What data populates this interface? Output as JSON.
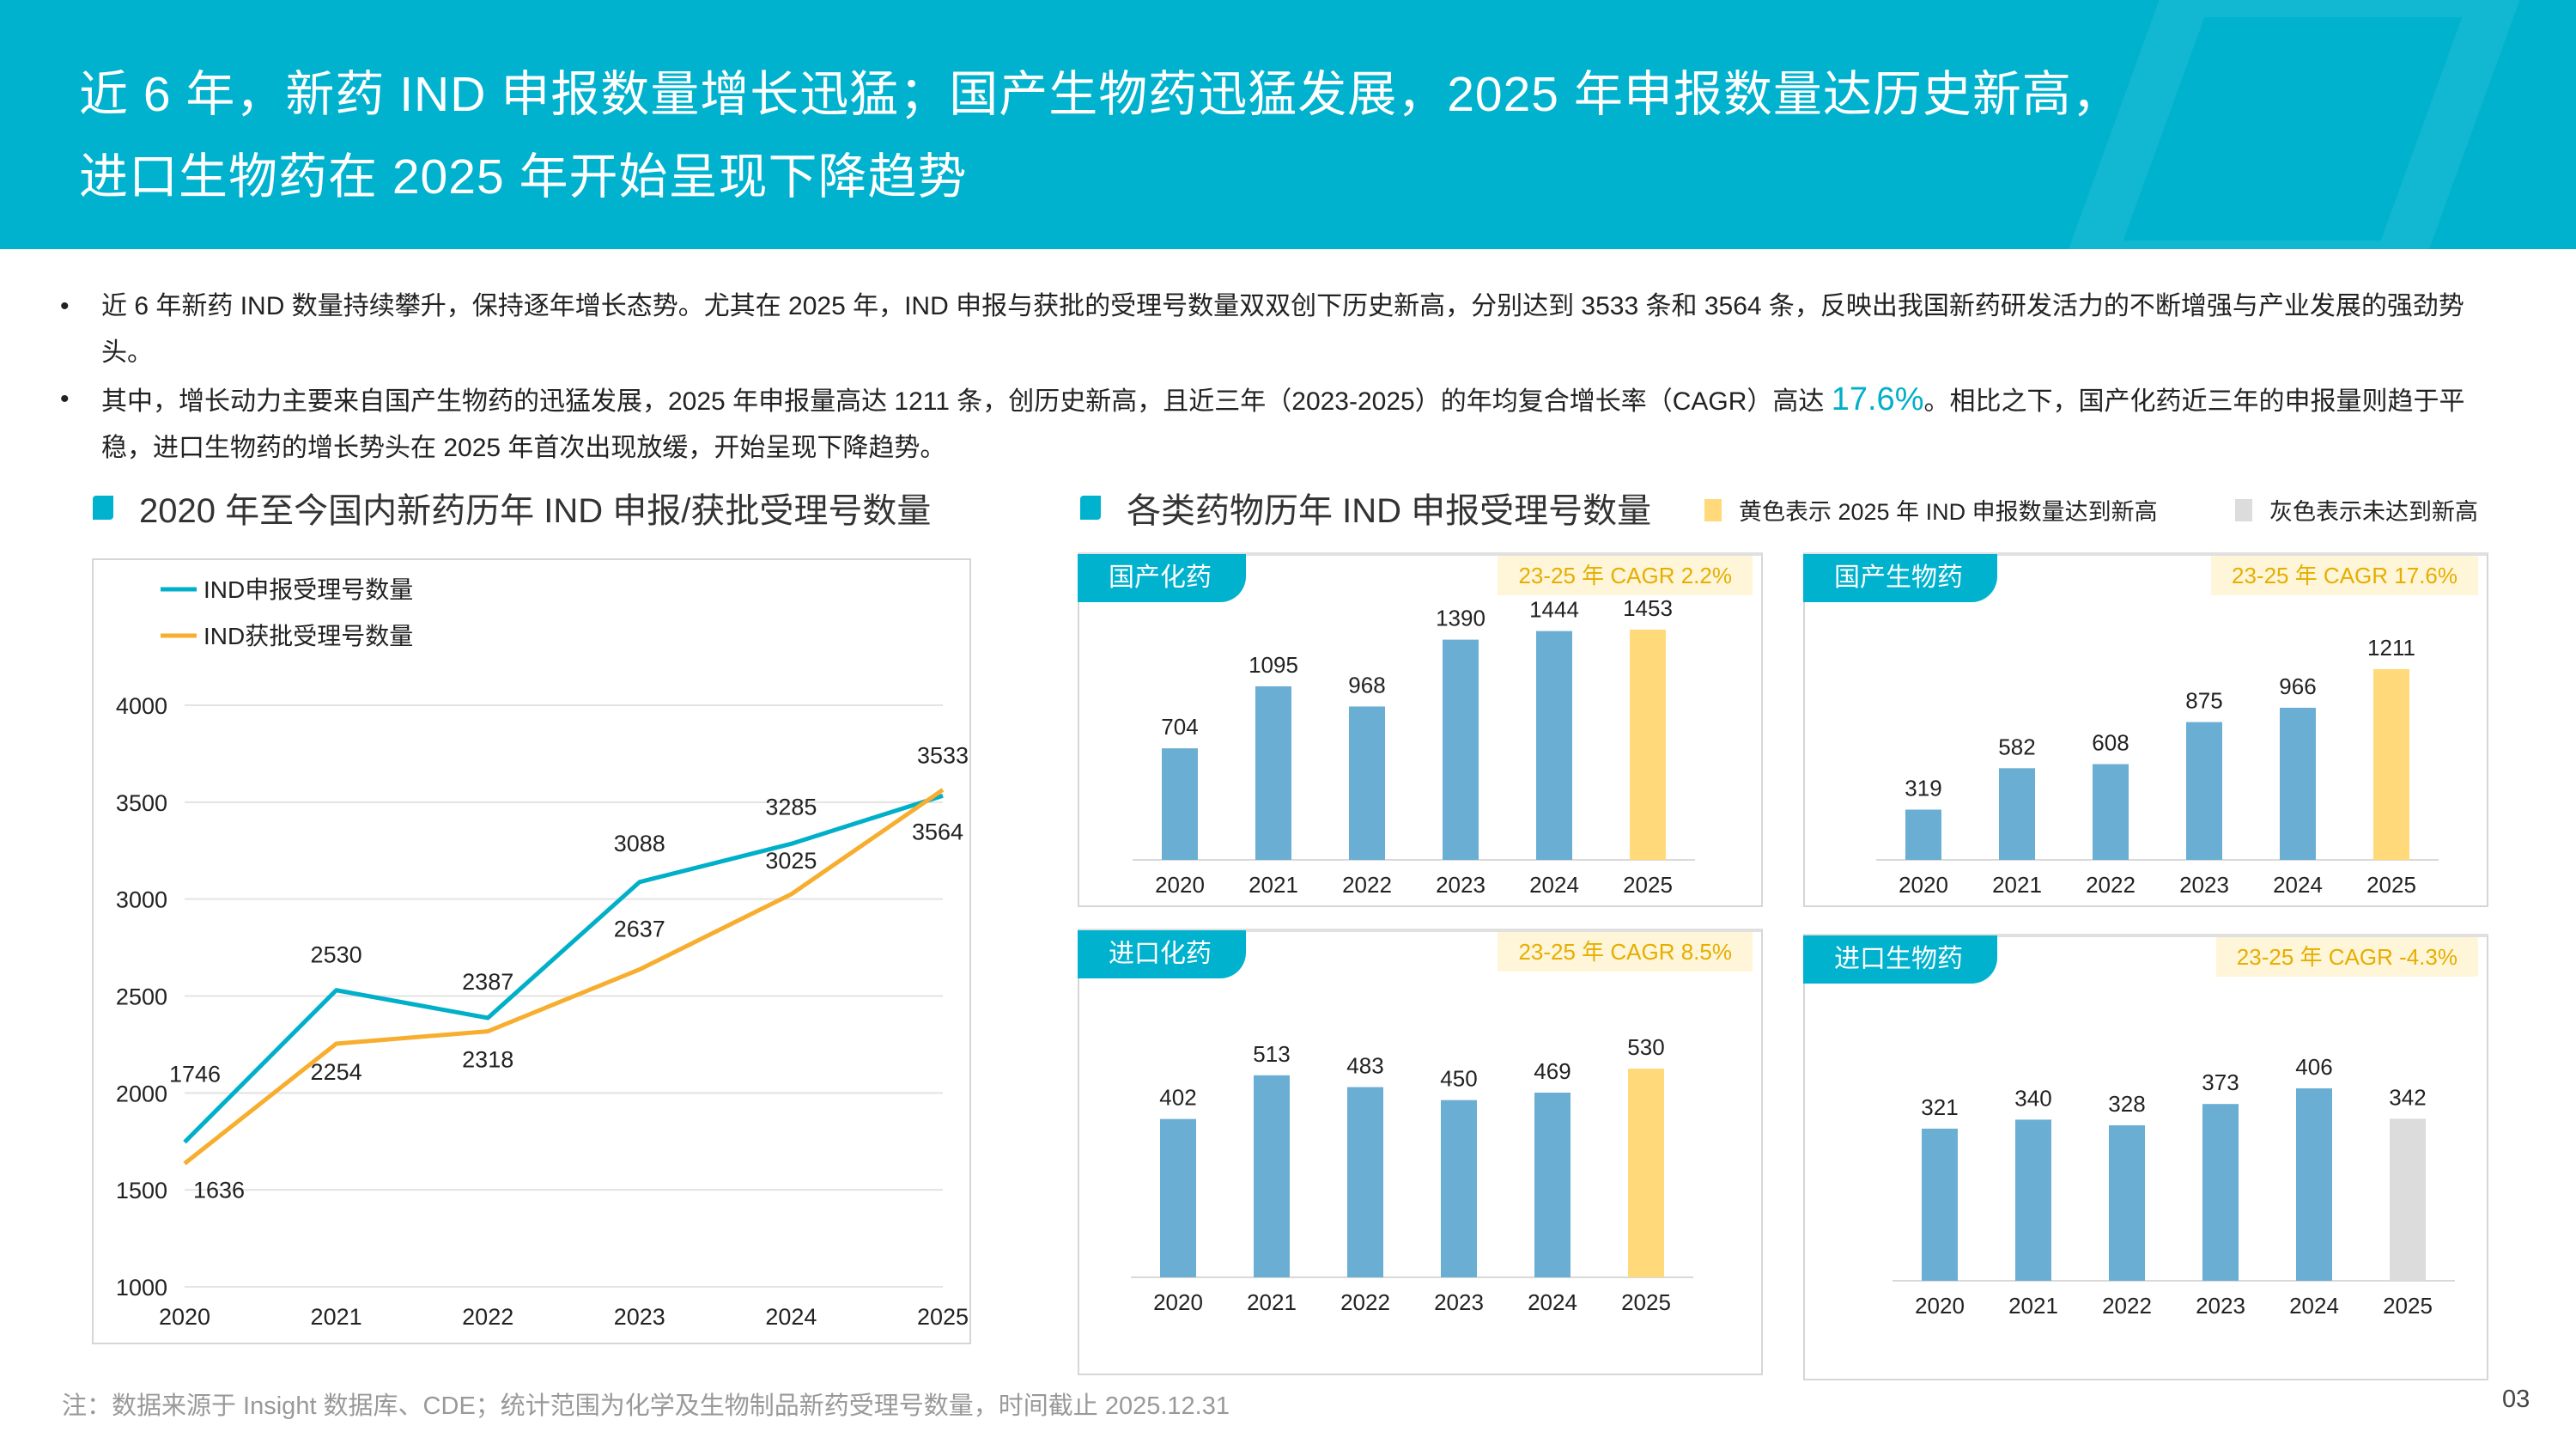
{
  "header": {
    "title_line1": "近 6 年，新药 IND 申报数量增长迅猛；国产生物药迅猛发展，2025 年申报数量达历史新高，",
    "title_line2": "进口生物药在 2025 年开始呈现下降趋势"
  },
  "bullets": [
    {
      "text": "近 6 年新药 IND 数量持续攀升，保持逐年增长态势。尤其在 2025 年，IND 申报与获批的受理号数量双双创下历史新高，分别达到 3533 条和 3564 条，反映出我国新药研发活力的不断增强与产业发展的强劲势头。"
    },
    {
      "before": "其中，增长动力主要来自国产生物药的迅猛发展，2025 年申报量高达 1211 条，创历史新高，且近三年（2023-2025）的年均复合增长率（CAGR）高达 ",
      "highlight": "17.6%",
      "after": "。相比之下，国产化药近三年的申报量则趋于平稳，进口生物药的增长势头在 2025 年首次出现放缓，开始呈现下降趋势。"
    }
  ],
  "left_section": {
    "title": "2020 年至今国内新药历年 IND 申报/获批受理号数量"
  },
  "right_section": {
    "title": "各类药物历年 IND 申报受理号数量",
    "legend_yellow": "黄色表示 2025 年 IND 申报数量达到新高",
    "legend_gray": "灰色表示未达到新高"
  },
  "colors": {
    "accent": "#00B2CE",
    "bar": "#6AAED3",
    "yellow": "#FFD97A",
    "gray": "#DCDCDC",
    "line_blue": "#00AFC8",
    "line_orange": "#F7AE2E",
    "badge_text": "#E6AE00"
  },
  "chart_data": [
    {
      "type": "line",
      "x": [
        "2020",
        "2021",
        "2022",
        "2023",
        "2024",
        "2025"
      ],
      "series": [
        {
          "name": "IND申报受理号数量",
          "color": "#00AFC8",
          "values": [
            1746,
            2530,
            2387,
            3088,
            3285,
            3533
          ]
        },
        {
          "name": "IND获批受理号数量",
          "color": "#F7AE2E",
          "values": [
            1636,
            2254,
            2318,
            2637,
            3025,
            3564
          ]
        }
      ],
      "yticks": [
        "1000",
        "1500",
        "2000",
        "2500",
        "3000",
        "3500",
        "4000"
      ],
      "ylim": [
        1000,
        4000
      ],
      "grid": true,
      "legend": "top-left"
    },
    {
      "type": "bar",
      "title": "国产化药",
      "badge": "23-25 年 CAGR 2.2%",
      "categories": [
        "2020",
        "2021",
        "2022",
        "2023",
        "2024",
        "2025"
      ],
      "values": [
        704,
        1095,
        968,
        1390,
        1444,
        1453
      ],
      "colors": [
        "bar",
        "bar",
        "bar",
        "bar",
        "bar",
        "yellow"
      ]
    },
    {
      "type": "bar",
      "title": "国产生物药",
      "badge": "23-25 年 CAGR 17.6%",
      "categories": [
        "2020",
        "2021",
        "2022",
        "2023",
        "2024",
        "2025"
      ],
      "values": [
        319,
        582,
        608,
        875,
        966,
        1211
      ],
      "colors": [
        "bar",
        "bar",
        "bar",
        "bar",
        "bar",
        "yellow"
      ]
    },
    {
      "type": "bar",
      "title": "进口化药",
      "badge": "23-25 年 CAGR 8.5%",
      "categories": [
        "2020",
        "2021",
        "2022",
        "2023",
        "2024",
        "2025"
      ],
      "values": [
        402,
        513,
        483,
        450,
        469,
        530
      ],
      "colors": [
        "bar",
        "bar",
        "bar",
        "bar",
        "bar",
        "yellow"
      ]
    },
    {
      "type": "bar",
      "title": "进口生物药",
      "badge": "23-25 年 CAGR -4.3%",
      "categories": [
        "2020",
        "2021",
        "2022",
        "2023",
        "2024",
        "2025"
      ],
      "values": [
        321,
        340,
        328,
        373,
        406,
        342
      ],
      "colors": [
        "bar",
        "bar",
        "bar",
        "bar",
        "bar",
        "gray"
      ]
    }
  ],
  "footer": {
    "note": "注：数据来源于 Insight 数据库、CDE；统计范围为化学及生物制品新药受理号数量，时间截止 2025.12.31",
    "page": "03"
  }
}
